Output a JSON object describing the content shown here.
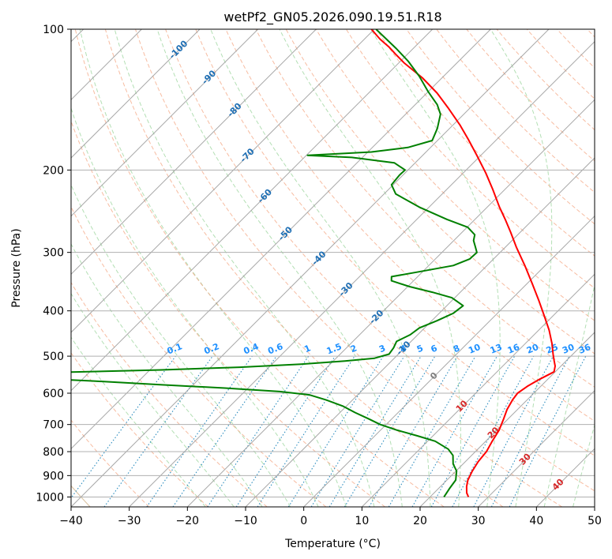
{
  "chart_data": {
    "type": "line",
    "subtype": "skew-t log-p diagram",
    "title": "wetPf2_GN05.2026.090.19.51.R18",
    "xlabel": "Temperature (°C)",
    "ylabel": "Pressure (hPa)",
    "xlim": [
      -40,
      50
    ],
    "ylim": [
      1050,
      100
    ],
    "yscale": "log",
    "x_ticks": [
      -40,
      -30,
      -20,
      -10,
      0,
      10,
      20,
      30,
      40,
      50
    ],
    "x_tick_labels": [
      "−40",
      "−30",
      "−20",
      "−10",
      "0",
      "10",
      "20",
      "30",
      "40",
      "50"
    ],
    "y_ticks": [
      1000,
      900,
      800,
      700,
      600,
      500,
      400,
      300,
      200,
      100
    ],
    "y_tick_labels": [
      "1000",
      "900",
      "800",
      "700",
      "600",
      "500",
      "400",
      "300",
      "200",
      "100"
    ],
    "grid": true,
    "colors": {
      "temperature": "#ff0000",
      "dewpoint": "#008000",
      "isotherm": "#999999",
      "dry_adiabat": "#f4a582",
      "moist_adiabat": "#74c476",
      "mixing_ratio": "#2b8cbe",
      "mixing_ratio_label": "#1e90ff",
      "isotherm_label_cold": "#1f6fb4",
      "isotherm_label_warm": "#d62728",
      "isotherm_label_zero": "#7f7f7f"
    },
    "series": [
      {
        "key": "temperature",
        "points": [
          [
            26.6,
            1000
          ],
          [
            25.6,
            980
          ],
          [
            24.5,
            950
          ],
          [
            23.6,
            920
          ],
          [
            22.8,
            880
          ],
          [
            22.2,
            840
          ],
          [
            21.9,
            800
          ],
          [
            21.1,
            760
          ],
          [
            20.4,
            720
          ],
          [
            19.2,
            680
          ],
          [
            18.2,
            650
          ],
          [
            17.5,
            620
          ],
          [
            17.2,
            600
          ],
          [
            17.7,
            580
          ],
          [
            18.6,
            560
          ],
          [
            19.5,
            545
          ],
          [
            19.8,
            540
          ],
          [
            19.0,
            525
          ],
          [
            17.8,
            510
          ],
          [
            16.6,
            495
          ],
          [
            14.6,
            470
          ],
          [
            11.8,
            440
          ],
          [
            8.5,
            410
          ],
          [
            4.9,
            380
          ],
          [
            0.9,
            350
          ],
          [
            -3.5,
            320
          ],
          [
            -8.0,
            293
          ],
          [
            -11.6,
            272
          ],
          [
            -14.8,
            255
          ],
          [
            -17.9,
            240
          ],
          [
            -22.1,
            220
          ],
          [
            -26.1,
            203
          ],
          [
            -30.7,
            186
          ],
          [
            -34.9,
            172
          ],
          [
            -38.9,
            160
          ],
          [
            -43.9,
            147
          ],
          [
            -48.2,
            137
          ],
          [
            -53.4,
            127
          ],
          [
            -59.1,
            118
          ],
          [
            -62.1,
            113
          ],
          [
            -64.5,
            109
          ],
          [
            -67.3,
            105
          ],
          [
            -70.5,
            100
          ]
        ]
      },
      {
        "key": "dewpoint",
        "points": [
          [
            22.4,
            1000
          ],
          [
            21.9,
            960
          ],
          [
            21.5,
            920
          ],
          [
            20.1,
            880
          ],
          [
            18.3,
            850
          ],
          [
            16.8,
            815
          ],
          [
            14.9,
            790
          ],
          [
            11.3,
            760
          ],
          [
            7.3,
            740
          ],
          [
            2.9,
            720
          ],
          [
            -1.0,
            700
          ],
          [
            -4.1,
            680
          ],
          [
            -7.4,
            660
          ],
          [
            -10.5,
            640
          ],
          [
            -14.6,
            620
          ],
          [
            -18.3,
            605
          ],
          [
            -24.0,
            595
          ],
          [
            -34.0,
            585
          ],
          [
            -46.0,
            575
          ],
          [
            -58.0,
            565
          ],
          [
            -70.0,
            556
          ],
          [
            -84.0,
            548
          ],
          [
            -64.0,
            541
          ],
          [
            -48.0,
            535
          ],
          [
            -35.0,
            528
          ],
          [
            -25.0,
            520
          ],
          [
            -18.0,
            512
          ],
          [
            -13.4,
            505
          ],
          [
            -11.6,
            495
          ],
          [
            -11.9,
            480
          ],
          [
            -12.5,
            465
          ],
          [
            -11.3,
            450
          ],
          [
            -10.9,
            435
          ],
          [
            -9.1,
            420
          ],
          [
            -7.6,
            405
          ],
          [
            -7.2,
            390
          ],
          [
            -10.5,
            375
          ],
          [
            -14.8,
            365
          ],
          [
            -19.7,
            355
          ],
          [
            -23.8,
            345
          ],
          [
            -24.5,
            338
          ],
          [
            -20.6,
            330
          ],
          [
            -15.8,
            320
          ],
          [
            -14.1,
            310
          ],
          [
            -14.0,
            300
          ],
          [
            -15.2,
            292
          ],
          [
            -16.6,
            283
          ],
          [
            -17.4,
            275
          ],
          [
            -19.9,
            265
          ],
          [
            -24.8,
            255
          ],
          [
            -31.7,
            240
          ],
          [
            -38.0,
            225
          ],
          [
            -40.3,
            215
          ],
          [
            -40.6,
            205
          ],
          [
            -40.5,
            200
          ],
          [
            -43.6,
            193
          ],
          [
            -51.8,
            188
          ],
          [
            -59.8,
            186
          ],
          [
            -49.4,
            183
          ],
          [
            -43.9,
            179
          ],
          [
            -40.9,
            173
          ],
          [
            -42.1,
            163
          ],
          [
            -44.0,
            152
          ],
          [
            -46.2,
            145
          ],
          [
            -50.0,
            136
          ],
          [
            -54.2,
            126
          ],
          [
            -58.7,
            117
          ],
          [
            -62.9,
            110
          ],
          [
            -66.2,
            105
          ],
          [
            -69.7,
            100
          ]
        ]
      }
    ],
    "isotherm_labels": [
      "-100",
      "-90",
      "-80",
      "-70",
      "-60",
      "-50",
      "-40",
      "-30",
      "-20",
      "-10",
      "0",
      "10",
      "20",
      "30",
      "40"
    ],
    "mixing_ratio_labels": [
      "0.1",
      "0.2",
      "0.4",
      "0.6",
      "1",
      "1.5",
      "2",
      "3",
      "4",
      "5",
      "6",
      "8",
      "10",
      "13",
      "16",
      "20",
      "25",
      "30",
      "36"
    ],
    "mixing_ratio_values": [
      0.1,
      0.2,
      0.4,
      0.6,
      1,
      1.5,
      2,
      3,
      4,
      5,
      6,
      8,
      10,
      13,
      16,
      20,
      25,
      30,
      36
    ]
  }
}
